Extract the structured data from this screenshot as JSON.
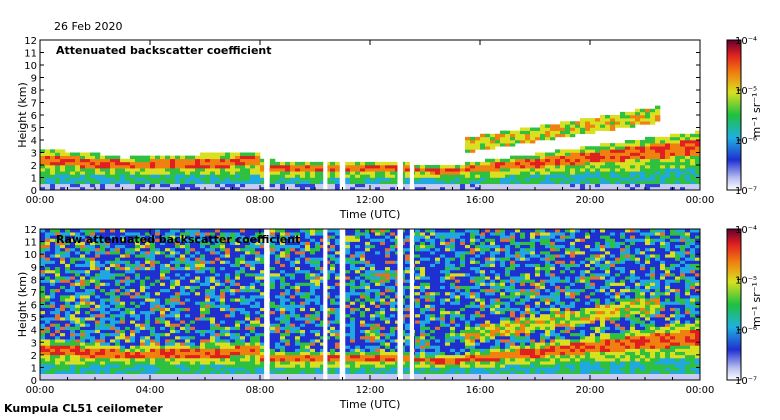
{
  "page": {
    "date": "26 Feb 2020",
    "site": "Kumpula CL51 ceilometer"
  },
  "chart_data": [
    {
      "type": "heatmap",
      "title": "Attenuated backscatter coefficient",
      "xlabel": "Time (UTC)",
      "ylabel": "Height (km)",
      "x_ticks": [
        "00:00",
        "04:00",
        "08:00",
        "12:00",
        "16:00",
        "20:00",
        "00:00"
      ],
      "y_ticks": [
        "0",
        "1",
        "2",
        "3",
        "4",
        "5",
        "6",
        "7",
        "8",
        "9",
        "10",
        "11",
        "12"
      ],
      "xlim_hours": [
        0,
        24
      ],
      "ylim_km": [
        0,
        12
      ],
      "colorbar": {
        "scale": "log",
        "ticks": [
          "10⁻⁴",
          "10⁻⁵",
          "10⁻⁶",
          "10⁻⁷"
        ],
        "unit": "m⁻¹ sr⁻¹"
      },
      "data_gaps_hours": [
        [
          8.15,
          8.35
        ],
        [
          10.3,
          10.45
        ],
        [
          10.9,
          11.1
        ],
        [
          13.0,
          13.2
        ],
        [
          13.45,
          13.6
        ]
      ]
    },
    {
      "type": "heatmap",
      "title": "Raw attenuated backscatter coefficient",
      "xlabel": "Time (UTC)",
      "ylabel": "Height (km)",
      "x_ticks": [
        "00:00",
        "04:00",
        "08:00",
        "12:00",
        "16:00",
        "20:00",
        "00:00"
      ],
      "y_ticks": [
        "0",
        "1",
        "2",
        "3",
        "4",
        "5",
        "6",
        "7",
        "8",
        "9",
        "10",
        "11",
        "12"
      ],
      "xlim_hours": [
        0,
        24
      ],
      "ylim_km": [
        0,
        12
      ],
      "colorbar": {
        "scale": "log",
        "ticks": [
          "10⁻⁴",
          "10⁻⁵",
          "10⁻⁶",
          "10⁻⁷"
        ],
        "unit": "m⁻¹ sr⁻¹"
      },
      "data_gaps_hours": [
        [
          8.15,
          8.35
        ],
        [
          10.3,
          10.45
        ],
        [
          10.9,
          11.1
        ],
        [
          13.0,
          13.2
        ],
        [
          13.45,
          13.6
        ]
      ]
    }
  ]
}
